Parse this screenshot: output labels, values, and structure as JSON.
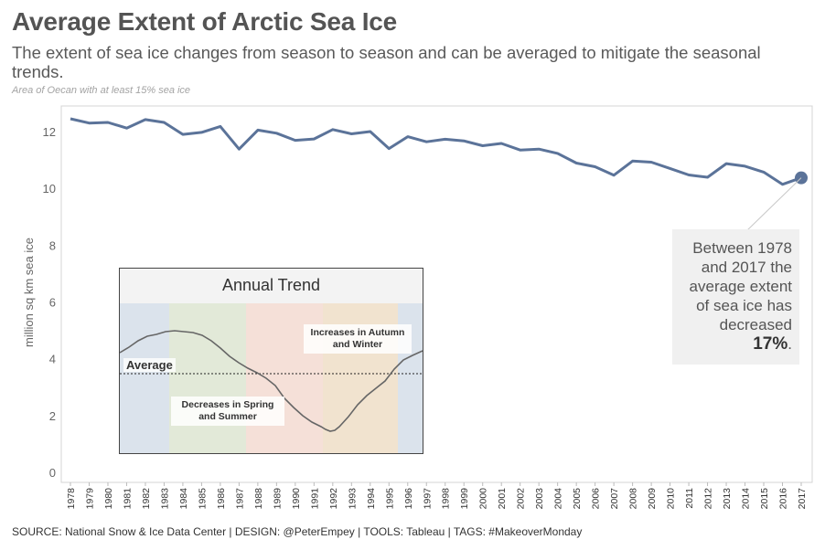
{
  "header": {
    "title": "Average Extent of Arctic Sea Ice",
    "subtitle": "The extent of sea ice changes from season to season and can be averaged to mitigate the seasonal trends.",
    "note": "Area of Oecan with at least 15% sea ice"
  },
  "chart_data": {
    "type": "line",
    "ylabel": "million sq km sea ice",
    "ylim": [
      0,
      12.9
    ],
    "yticks": [
      0,
      2,
      4,
      6,
      8,
      10,
      12
    ],
    "grid": false,
    "x": [
      1978,
      1979,
      1980,
      1981,
      1982,
      1983,
      1984,
      1985,
      1986,
      1987,
      1988,
      1989,
      1990,
      1991,
      1992,
      1993,
      1994,
      1995,
      1996,
      1997,
      1998,
      1999,
      2000,
      2001,
      2002,
      2003,
      2004,
      2005,
      2006,
      2007,
      2008,
      2009,
      2010,
      2011,
      2012,
      2013,
      2014,
      2015,
      2016,
      2017
    ],
    "series": [
      {
        "values": [
          12.45,
          12.3,
          12.32,
          12.12,
          12.42,
          12.32,
          11.9,
          11.97,
          12.18,
          11.38,
          12.05,
          11.94,
          11.69,
          11.74,
          12.07,
          11.92,
          12.0,
          11.4,
          11.82,
          11.64,
          11.73,
          11.67,
          11.5,
          11.58,
          11.35,
          11.38,
          11.23,
          10.89,
          10.76,
          10.46,
          10.96,
          10.92,
          10.7,
          10.47,
          10.39,
          10.87,
          10.78,
          10.57,
          10.14,
          10.37
        ]
      }
    ],
    "line_color": "#5b7399",
    "annotation": {
      "text": "Between 1978 and 2017 the average extent of sea ice has decreased",
      "percent": "17%",
      "period": "."
    },
    "inset": {
      "title": "Annual Trend",
      "average_label": "Average",
      "label_increase": "Increases in Autumn and Winter",
      "label_decrease": "Decreases in Spring and Summer",
      "season_colors": [
        "#dbe3ec",
        "#e2e9d8",
        "#f5e0d8",
        "#f1e3cf",
        "#dbe3ec"
      ]
    }
  },
  "footer": {
    "text": "SOURCE: National Snow & Ice Data Center | DESIGN: @PeterEmpey | TOOLS: Tableau | TAGS: #MakeoverMonday"
  }
}
